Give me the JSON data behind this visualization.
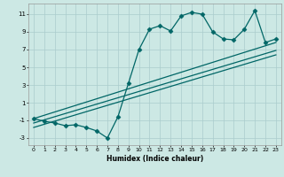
{
  "title": "",
  "xlabel": "Humidex (Indice chaleur)",
  "ylabel": "",
  "bg_color": "#cce8e4",
  "grid_color": "#aacccc",
  "line_color": "#006666",
  "xlim": [
    -0.5,
    23.5
  ],
  "ylim": [
    -3.8,
    12.2
  ],
  "xticks": [
    0,
    1,
    2,
    3,
    4,
    5,
    6,
    7,
    8,
    9,
    10,
    11,
    12,
    13,
    14,
    15,
    16,
    17,
    18,
    19,
    20,
    21,
    22,
    23
  ],
  "yticks": [
    -3,
    -1,
    1,
    3,
    5,
    7,
    9,
    11
  ],
  "series1_x": [
    0,
    1,
    2,
    3,
    4,
    5,
    6,
    7,
    8,
    9,
    10,
    11,
    12,
    13,
    14,
    15,
    16,
    17,
    18,
    19,
    20,
    21,
    22,
    23
  ],
  "series1_y": [
    -0.8,
    -1.1,
    -1.3,
    -1.6,
    -1.5,
    -1.8,
    -2.2,
    -3.0,
    -0.6,
    3.2,
    7.0,
    9.3,
    9.7,
    9.1,
    10.8,
    11.2,
    11.0,
    9.0,
    8.2,
    8.1,
    9.3,
    11.4,
    7.8,
    8.2
  ],
  "series2_x": [
    0,
    23
  ],
  "series2_y": [
    -0.8,
    7.8
  ],
  "series3_x": [
    0,
    23
  ],
  "series3_y": [
    -1.3,
    6.9
  ],
  "series4_x": [
    0,
    23
  ],
  "series4_y": [
    -1.8,
    6.4
  ],
  "marker": "D",
  "markersize": 2.5,
  "linewidth": 0.9
}
